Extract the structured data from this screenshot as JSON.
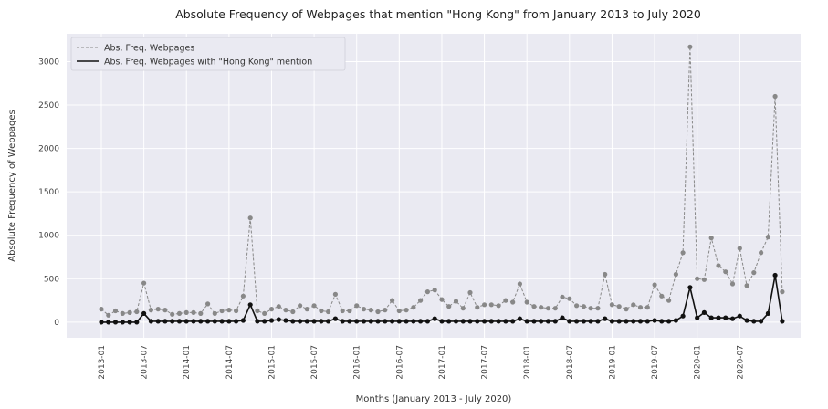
{
  "chart_data": {
    "type": "line",
    "title": "Absolute Frequency of Webpages that mention \"Hong Kong\" from January 2013 to July 2020",
    "xlabel": "Months (January 2013 - July 2020)",
    "ylabel": "Absolute Frequency of Webpages",
    "ylim": [
      -180,
      3320
    ],
    "yticks": [
      0,
      500,
      1000,
      1500,
      2000,
      2500,
      3000
    ],
    "xtick_labels": [
      "2013-01",
      "2013-07",
      "2014-01",
      "2014-07",
      "2015-01",
      "2015-07",
      "2016-01",
      "2016-07",
      "2017-01",
      "2017-07",
      "2018-01",
      "2018-07",
      "2019-01",
      "2019-07",
      "2020-01",
      "2020-07"
    ],
    "grid": true,
    "legend_position": "top-left",
    "colors": {
      "background": "#eaeaf2",
      "grid": "#ffffff",
      "all_series": "#888888",
      "hk_series": "#111111"
    },
    "series": [
      {
        "name": "Abs. Freq. Webpages",
        "style": "dashed",
        "values": [
          150,
          80,
          130,
          100,
          110,
          120,
          450,
          140,
          150,
          140,
          90,
          100,
          110,
          110,
          100,
          210,
          100,
          130,
          140,
          130,
          300,
          1200,
          130,
          100,
          150,
          180,
          140,
          120,
          190,
          150,
          190,
          130,
          120,
          320,
          130,
          130,
          190,
          150,
          140,
          120,
          140,
          250,
          130,
          140,
          170,
          250,
          350,
          370,
          260,
          180,
          240,
          160,
          340,
          170,
          200,
          200,
          190,
          250,
          230,
          440,
          230,
          180,
          170,
          160,
          160,
          290,
          270,
          190,
          180,
          160,
          160,
          550,
          200,
          180,
          150,
          200,
          170,
          170,
          430,
          300,
          250,
          550,
          800,
          3170,
          500,
          490,
          970,
          650,
          580,
          440,
          850,
          420,
          570,
          800,
          980,
          2600,
          350
        ]
      },
      {
        "name": "Abs. Freq. Webpages with \"Hong Kong\" mention",
        "style": "solid",
        "values": [
          0,
          0,
          0,
          0,
          0,
          0,
          100,
          10,
          10,
          10,
          10,
          10,
          10,
          10,
          10,
          10,
          10,
          10,
          10,
          10,
          20,
          200,
          10,
          10,
          20,
          30,
          20,
          10,
          10,
          10,
          10,
          10,
          10,
          40,
          10,
          10,
          10,
          10,
          10,
          10,
          10,
          10,
          10,
          10,
          10,
          10,
          10,
          40,
          10,
          10,
          10,
          10,
          10,
          10,
          10,
          10,
          10,
          10,
          10,
          40,
          10,
          10,
          10,
          10,
          10,
          50,
          10,
          10,
          10,
          10,
          10,
          40,
          10,
          10,
          10,
          10,
          10,
          10,
          20,
          10,
          10,
          20,
          70,
          400,
          50,
          110,
          50,
          50,
          50,
          40,
          70,
          20,
          10,
          10,
          100,
          540,
          10
        ]
      }
    ]
  }
}
